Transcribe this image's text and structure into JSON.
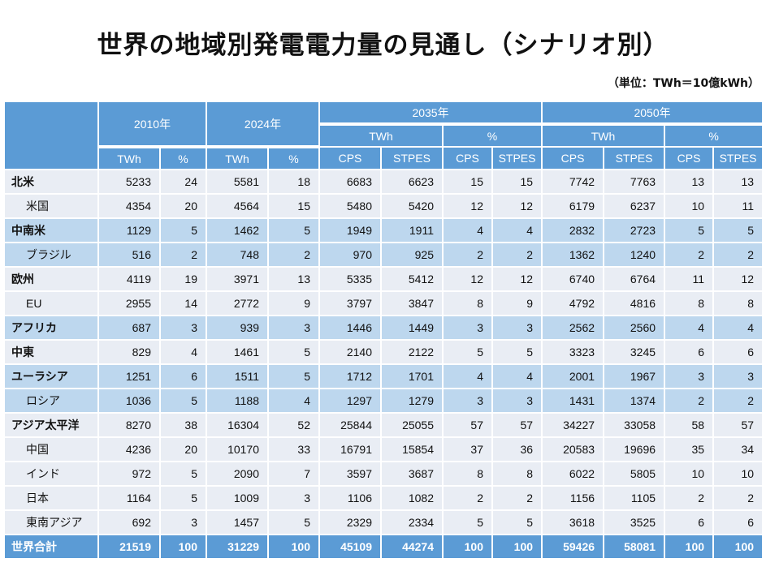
{
  "title": "世界の地域別発電電力量の見通し（シナリオ別）",
  "unit": "（単位：TWh＝10億kWh）",
  "header": {
    "years": [
      "2010年",
      "2024年",
      "2035年",
      "2050年"
    ],
    "twh": "TWh",
    "pct": "%",
    "cps": "CPS",
    "stpes": "STPES"
  },
  "rows": [
    {
      "label": "北米",
      "type": "main",
      "band": "light",
      "values": [
        5233,
        24,
        5581,
        18,
        6683,
        6623,
        15,
        15,
        7742,
        7763,
        13,
        13
      ]
    },
    {
      "label": "米国",
      "type": "sub",
      "band": "light",
      "values": [
        4354,
        20,
        4564,
        15,
        5480,
        5420,
        12,
        12,
        6179,
        6237,
        10,
        11
      ]
    },
    {
      "label": "中南米",
      "type": "main",
      "band": "blue",
      "values": [
        1129,
        5,
        1462,
        5,
        1949,
        1911,
        4,
        4,
        2832,
        2723,
        5,
        5
      ]
    },
    {
      "label": "ブラジル",
      "type": "sub",
      "band": "blue",
      "values": [
        516,
        2,
        748,
        2,
        970,
        925,
        2,
        2,
        1362,
        1240,
        2,
        2
      ]
    },
    {
      "label": "欧州",
      "type": "main",
      "band": "light",
      "values": [
        4119,
        19,
        3971,
        13,
        5335,
        5412,
        12,
        12,
        6740,
        6764,
        11,
        12
      ]
    },
    {
      "label": "EU",
      "type": "sub",
      "band": "light",
      "values": [
        2955,
        14,
        2772,
        9,
        3797,
        3847,
        8,
        9,
        4792,
        4816,
        8,
        8
      ]
    },
    {
      "label": "アフリカ",
      "type": "main",
      "band": "blue",
      "values": [
        687,
        3,
        939,
        3,
        1446,
        1449,
        3,
        3,
        2562,
        2560,
        4,
        4
      ]
    },
    {
      "label": "中東",
      "type": "main",
      "band": "light",
      "values": [
        829,
        4,
        1461,
        5,
        2140,
        2122,
        5,
        5,
        3323,
        3245,
        6,
        6
      ]
    },
    {
      "label": "ユーラシア",
      "type": "main",
      "band": "blue",
      "values": [
        1251,
        6,
        1511,
        5,
        1712,
        1701,
        4,
        4,
        2001,
        1967,
        3,
        3
      ]
    },
    {
      "label": "ロシア",
      "type": "sub",
      "band": "blue",
      "values": [
        1036,
        5,
        1188,
        4,
        1297,
        1279,
        3,
        3,
        1431,
        1374,
        2,
        2
      ]
    },
    {
      "label": "アジア太平洋",
      "type": "main",
      "band": "light",
      "values": [
        8270,
        38,
        16304,
        52,
        25844,
        25055,
        57,
        57,
        34227,
        33058,
        58,
        57
      ]
    },
    {
      "label": "中国",
      "type": "sub",
      "band": "light",
      "values": [
        4236,
        20,
        10170,
        33,
        16791,
        15854,
        37,
        36,
        20583,
        19696,
        35,
        34
      ]
    },
    {
      "label": "インド",
      "type": "sub",
      "band": "light",
      "values": [
        972,
        5,
        2090,
        7,
        3597,
        3687,
        8,
        8,
        6022,
        5805,
        10,
        10
      ]
    },
    {
      "label": "日本",
      "type": "sub",
      "band": "light",
      "values": [
        1164,
        5,
        1009,
        3,
        1106,
        1082,
        2,
        2,
        1156,
        1105,
        2,
        2
      ]
    },
    {
      "label": "東南アジア",
      "type": "sub",
      "band": "light",
      "values": [
        692,
        3,
        1457,
        5,
        2329,
        2334,
        5,
        5,
        3618,
        3525,
        6,
        6
      ]
    },
    {
      "label": "世界合計",
      "type": "total",
      "band": "total",
      "values": [
        21519,
        100,
        31229,
        100,
        45109,
        44274,
        100,
        100,
        59426,
        58081,
        100,
        100
      ]
    }
  ]
}
